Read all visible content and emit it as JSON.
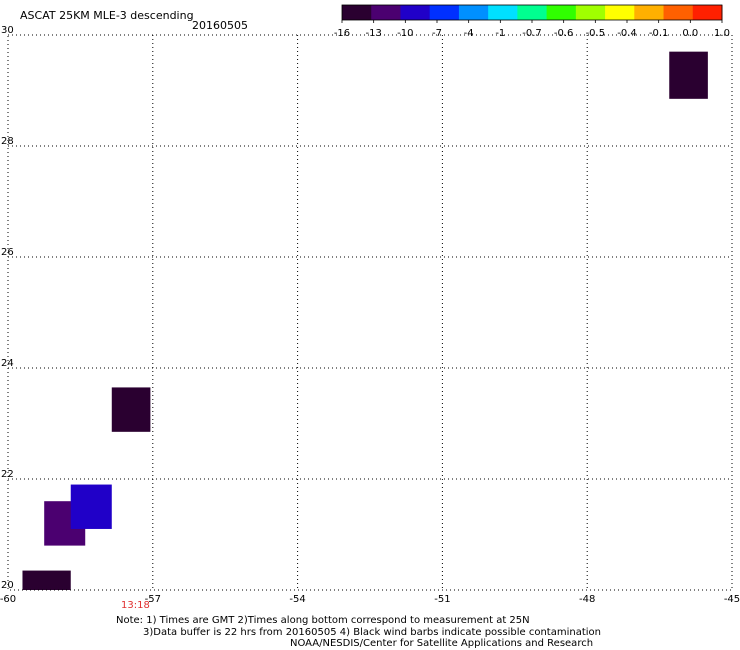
{
  "header": {
    "title": "ASCAT 25KM MLE-3 descending",
    "date": "20160505"
  },
  "colorbar": {
    "labels": [
      "-16",
      "-13",
      "-10",
      "-7",
      "-4",
      "-1",
      "-0.7",
      "-0.6",
      "-0.5",
      "-0.4",
      "-0.1",
      "0.0",
      "1.0"
    ],
    "colors": [
      "#2a0030",
      "#4b0070",
      "#2000c8",
      "#0030ff",
      "#0090ff",
      "#00e0ff",
      "#00ff90",
      "#30ff00",
      "#a0ff00",
      "#ffff00",
      "#ffb000",
      "#ff6000",
      "#ff2000"
    ]
  },
  "map": {
    "lon_range": [
      -60,
      -45
    ],
    "lat_range": [
      20,
      30
    ],
    "lon_ticks": [
      "-60",
      "-57",
      "-54",
      "-51",
      "-48",
      "-45"
    ],
    "lat_ticks": [
      "20",
      "22",
      "24",
      "26",
      "28",
      "30"
    ],
    "cells": [
      {
        "lon0": -59.7,
        "lon1": -58.7,
        "lat0": 20.0,
        "lat1": 20.35,
        "color": "#2a0030"
      },
      {
        "lon0": -59.25,
        "lon1": -58.4,
        "lat0": 20.8,
        "lat1": 21.6,
        "color": "#4b0070"
      },
      {
        "lon0": -58.7,
        "lon1": -57.85,
        "lat0": 21.1,
        "lat1": 21.9,
        "color": "#2000c8"
      },
      {
        "lon0": -57.85,
        "lon1": -57.05,
        "lat0": 22.85,
        "lat1": 23.65,
        "color": "#2a0030"
      },
      {
        "lon0": -46.3,
        "lon1": -45.5,
        "lat0": 28.85,
        "lat1": 29.7,
        "color": "#2a0030"
      }
    ],
    "time_label": "13:18"
  },
  "notes": {
    "line1": "Note: 1) Times are GMT 2)Times along bottom correspond to measurement at 25N",
    "line2": "3)Data buffer is 22 hrs from 20160505 4) Black wind barbs indicate possible contamination",
    "line3": "NOAA/NESDIS/Center for Satellite Applications and Research"
  }
}
